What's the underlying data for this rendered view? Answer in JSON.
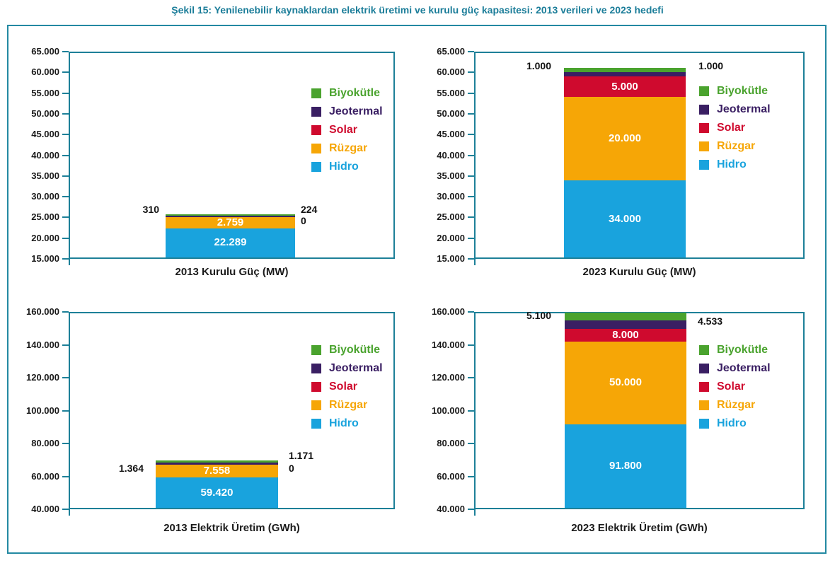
{
  "figure_title": "Şekil 15: Yenilenebilir kaynaklardan elektrik üretimi ve kurulu güç kapasitesi: 2013 verileri ve 2023 hedefi",
  "colors": {
    "title_teal": "#1b7d99",
    "axis_teal": "#1d8098",
    "outer_border_teal": "#2389a2",
    "biyokutle": "#4aa32e",
    "jeotermal": "#3a1f63",
    "solar": "#cf0a2e",
    "ruzgar": "#f6a606",
    "hidro": "#19a3dd",
    "tick_text": "#1a1a1a",
    "bar_value_text": "#ffffff"
  },
  "legend_items": [
    {
      "label": "Biyokütle",
      "key": "biyokutle"
    },
    {
      "label": "Jeotermal",
      "key": "jeotermal"
    },
    {
      "label": "Solar",
      "key": "solar"
    },
    {
      "label": "Rüzgar",
      "key": "ruzgar"
    },
    {
      "label": "Hidro",
      "key": "hidro"
    }
  ],
  "chart_data": [
    {
      "type": "bar",
      "stacked": true,
      "title": "2013 Kurulu Güç (MW)",
      "ylim": [
        15000,
        65000
      ],
      "ytick_step": 5000,
      "ytick_labels": [
        "65.000",
        "60.000",
        "55.000",
        "50.000",
        "45.000",
        "40.000",
        "35.000",
        "30.000",
        "25.000",
        "20.000",
        "15.000"
      ],
      "series": [
        {
          "name": "Hidro",
          "key": "hidro",
          "value": 22289,
          "bar_label": "22.289"
        },
        {
          "name": "Rüzgar",
          "key": "ruzgar",
          "value": 2759,
          "bar_label": "2.759"
        },
        {
          "name": "Solar",
          "key": "solar",
          "value": 0
        },
        {
          "name": "Jeotermal",
          "key": "jeotermal",
          "value": 310
        },
        {
          "name": "Biyokütle",
          "key": "biyokutle",
          "value": 224
        }
      ],
      "outside_labels": {
        "left": "310",
        "right": [
          "224",
          "0"
        ]
      }
    },
    {
      "type": "bar",
      "stacked": true,
      "title": "2023 Kurulu Güç (MW)",
      "ylim": [
        15000,
        65000
      ],
      "ytick_step": 5000,
      "ytick_labels": [
        "65.000",
        "60.000",
        "55.000",
        "50.000",
        "45.000",
        "40.000",
        "35.000",
        "30.000",
        "25.000",
        "20.000",
        "15.000"
      ],
      "series": [
        {
          "name": "Hidro",
          "key": "hidro",
          "value": 34000,
          "bar_label": "34.000"
        },
        {
          "name": "Rüzgar",
          "key": "ruzgar",
          "value": 20000,
          "bar_label": "20.000"
        },
        {
          "name": "Solar",
          "key": "solar",
          "value": 5000,
          "bar_label": "5.000"
        },
        {
          "name": "Jeotermal",
          "key": "jeotermal",
          "value": 1000
        },
        {
          "name": "Biyokütle",
          "key": "biyokutle",
          "value": 1000
        }
      ],
      "outside_labels": {
        "left": "1.000",
        "right": [
          "1.000"
        ]
      }
    },
    {
      "type": "bar",
      "stacked": true,
      "title": "2013 Elektrik Üretim (GWh)",
      "ylim": [
        40000,
        160000
      ],
      "ytick_step": 20000,
      "ytick_labels": [
        "160.000",
        "140.000",
        "120.000",
        "100.000",
        "80.000",
        "60.000",
        "40.000"
      ],
      "series": [
        {
          "name": "Hidro",
          "key": "hidro",
          "value": 59420,
          "bar_label": "59.420"
        },
        {
          "name": "Rüzgar",
          "key": "ruzgar",
          "value": 7558,
          "bar_label": "7.558"
        },
        {
          "name": "Solar",
          "key": "solar",
          "value": 0
        },
        {
          "name": "Jeotermal",
          "key": "jeotermal",
          "value": 1364
        },
        {
          "name": "Biyokütle",
          "key": "biyokutle",
          "value": 1171
        }
      ],
      "outside_labels": {
        "left": "1.364",
        "right": [
          "1.171",
          "0"
        ]
      }
    },
    {
      "type": "bar",
      "stacked": true,
      "title": "2023 Elektrik Üretim (GWh)",
      "ylim": [
        40000,
        160000
      ],
      "ytick_step": 20000,
      "ytick_labels": [
        "160.000",
        "140.000",
        "120.000",
        "100.000",
        "80.000",
        "60.000",
        "40.000"
      ],
      "series": [
        {
          "name": "Hidro",
          "key": "hidro",
          "value": 91800,
          "bar_label": "91.800"
        },
        {
          "name": "Rüzgar",
          "key": "ruzgar",
          "value": 50000,
          "bar_label": "50.000"
        },
        {
          "name": "Solar",
          "key": "solar",
          "value": 8000,
          "bar_label": "8.000"
        },
        {
          "name": "Jeotermal",
          "key": "jeotermal",
          "value": 5100
        },
        {
          "name": "Biyokütle",
          "key": "biyokutle",
          "value": 4533
        }
      ],
      "outside_labels": {
        "left": "5.100",
        "right": [
          "4.533"
        ]
      }
    }
  ]
}
